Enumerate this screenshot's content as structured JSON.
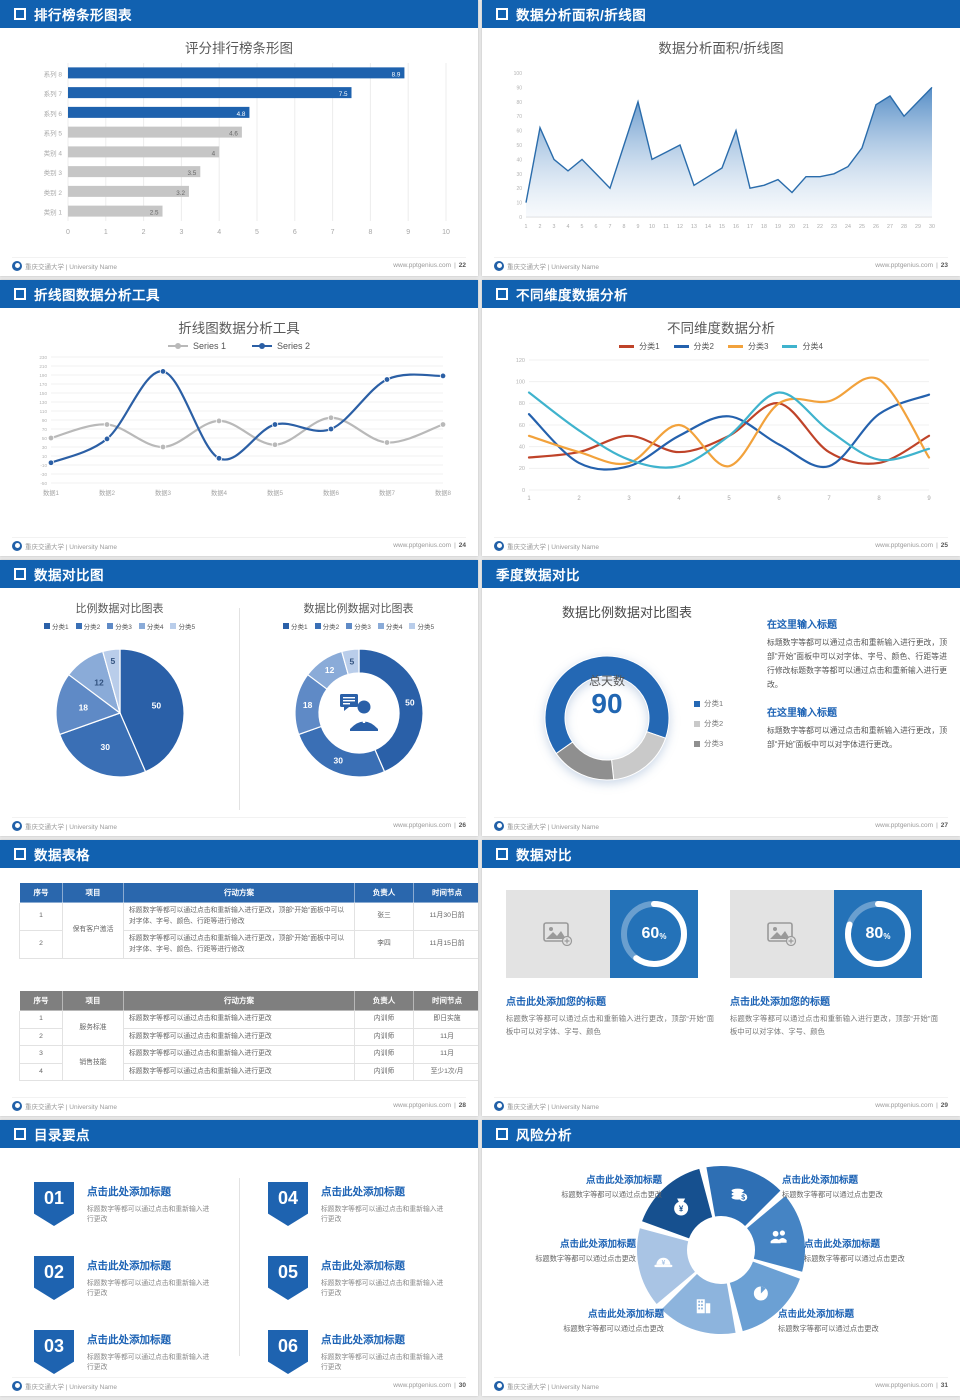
{
  "footer": {
    "university": "重庆交通大学 | University Name",
    "site": "www.pptgenius.com"
  },
  "slides": {
    "s1": {
      "header": "排行榜条形图表",
      "page": "22",
      "title": "评分排行榜条形图"
    },
    "s2": {
      "header": "数据分析面积/折线图",
      "page": "23",
      "title": "数据分析面积/折线图"
    },
    "s3": {
      "header": "折线图数据分析工具",
      "page": "24",
      "title": "折线图数据分析工具",
      "legend": [
        "Series 1",
        "Series 2"
      ]
    },
    "s4": {
      "header": "不同维度数据分析",
      "page": "25",
      "title": "不同维度数据分析",
      "legend": [
        "分类1",
        "分类2",
        "分类3",
        "分类4"
      ]
    },
    "s5": {
      "header": "数据对比图",
      "page": "26",
      "title_left": "比例数据对比图表",
      "title_right": "数据比例数据对比图表",
      "legend": [
        "分类1",
        "分类2",
        "分类3",
        "分类4",
        "分类5"
      ]
    },
    "s6": {
      "header": "季度数据对比",
      "page": "27",
      "title": "数据比例数据对比图表",
      "center_label": "总天数",
      "center_value": "90",
      "legend": [
        "分类1",
        "分类2",
        "分类3"
      ],
      "blocks": [
        {
          "heading": "在这里输入标题",
          "body": "标题数字等都可以通过点击和重新输入进行更改，顶部“开始”面板中可以对字体、字号、颜色、行距等进行修改标题数字等都可以通过点击和重新输入进行更改。"
        },
        {
          "heading": "在这里输入标题",
          "body": "标题数字等都可以通过点击和重新输入进行更改，顶部“开始”面板中可以对字体进行更改。"
        }
      ]
    },
    "s7": {
      "header": "数据表格",
      "page": "28",
      "table1": {
        "headers": [
          "序号",
          "项目",
          "行动方案",
          "负责人",
          "时间节点"
        ],
        "group": "保有客户激活",
        "rows": [
          [
            "1",
            "标题数字等都可以通过点击和重新输入进行更改，顶部“开始”面板中可以对字体、字号、颜色、行距等进行修改",
            "张三",
            "11月30日前"
          ],
          [
            "2",
            "标题数字等都可以通过点击和重新输入进行更改，顶部“开始”面板中可以对字体、字号、颜色、行距等进行修改",
            "李四",
            "11月15日前"
          ]
        ]
      },
      "table2": {
        "headers": [
          "序号",
          "项目",
          "行动方案",
          "负责人",
          "时间节点"
        ],
        "groups": [
          "服务标准",
          "销售技能"
        ],
        "rows": [
          [
            "1",
            "标题数字等都可以通过点击和重新输入进行更改",
            "内训师",
            "即日实施"
          ],
          [
            "2",
            "标题数字等都可以通过点击和重新输入进行更改",
            "内训师",
            "11月"
          ],
          [
            "3",
            "标题数字等都可以通过点击和重新输入进行更改",
            "内训师",
            "11月"
          ],
          [
            "4",
            "标题数字等都可以通过点击和重新输入进行更改",
            "内训师",
            "至少1次/月"
          ]
        ]
      }
    },
    "s8": {
      "header": "数据对比",
      "page": "29",
      "cards": [
        {
          "percent": "60",
          "unit": "%",
          "title": "点击此处添加您的标题",
          "body": "标题数字等都可以通过点击和重新输入进行更改，顶部“开始”面板中可以对字体、字号、颜色"
        },
        {
          "percent": "80",
          "unit": "%",
          "title": "点击此处添加您的标题",
          "body": "标题数字等都可以通过点击和重新输入进行更改，顶部“开始”面板中可以对字体、字号、颜色"
        }
      ]
    },
    "s9": {
      "header": "目录要点",
      "page": "30",
      "items": [
        {
          "num": "01",
          "title": "点击此处添加标题",
          "body": "标题数字等都可以通过点击和重新输入进行更改"
        },
        {
          "num": "02",
          "title": "点击此处添加标题",
          "body": "标题数字等都可以通过点击和重新输入进行更改"
        },
        {
          "num": "03",
          "title": "点击此处添加标题",
          "body": "标题数字等都可以通过点击和重新输入进行更改"
        },
        {
          "num": "04",
          "title": "点击此处添加标题",
          "body": "标题数字等都可以通过点击和重新输入进行更改"
        },
        {
          "num": "05",
          "title": "点击此处添加标题",
          "body": "标题数字等都可以通过点击和重新输入进行更改"
        },
        {
          "num": "06",
          "title": "点击此处添加标题",
          "body": "标题数字等都可以通过点击和重新输入进行更改"
        }
      ]
    },
    "s10": {
      "header": "风险分析",
      "page": "31",
      "items": [
        {
          "title": "点击此处添加标题",
          "body": "标题数字等都可以通过点击更改"
        },
        {
          "title": "点击此处添加标题",
          "body": "标题数字等都可以通过点击更改"
        },
        {
          "title": "点击此处添加标题",
          "body": "标题数字等都可以通过点击更改"
        },
        {
          "title": "点击此处添加标题",
          "body": "标题数字等都可以通过点击更改"
        },
        {
          "title": "点击此处添加标题",
          "body": "标题数字等都可以通过点击更改"
        },
        {
          "title": "点击此处添加标题",
          "body": "标题数字等都可以通过点击更改"
        }
      ],
      "petals": [
        {
          "start": 290,
          "color": "#16508f",
          "icon": "money-bag-icon"
        },
        {
          "start": 350,
          "color": "#2e6fb4",
          "icon": "coins-icon"
        },
        {
          "start": 50,
          "color": "#4584c4",
          "icon": "people-icon"
        },
        {
          "start": 110,
          "color": "#6ba0d4",
          "icon": "pie-chart-icon"
        },
        {
          "start": 170,
          "color": "#8db4dd",
          "icon": "building-icon"
        },
        {
          "start": 230,
          "color": "#a9c4e4",
          "icon": "safety-helmet-icon"
        }
      ]
    }
  },
  "chart_data": [
    {
      "id": "bar-ranking",
      "type": "bar",
      "orientation": "horizontal",
      "title": "评分排行榜条形图",
      "categories": [
        "系列 8",
        "系列 7",
        "系列 6",
        "系列 5",
        "类别 4",
        "类别 3",
        "类别 2",
        "类别 1"
      ],
      "values": [
        8.9,
        7.5,
        4.8,
        4.6,
        4,
        3.5,
        3.2,
        2.5
      ],
      "bar_colors": [
        "#1e62ae",
        "#1e62ae",
        "#1e62ae",
        "#c6c6c6",
        "#c6c6c6",
        "#c6c6c6",
        "#c6c6c6",
        "#c6c6c6"
      ],
      "xlim": [
        0,
        10
      ],
      "xticks": [
        0,
        1,
        2,
        3,
        4,
        5,
        6,
        7,
        8,
        9,
        10
      ]
    },
    {
      "id": "area-analysis",
      "type": "area",
      "title": "数据分析面积/折线图",
      "x": [
        1,
        2,
        3,
        4,
        5,
        6,
        7,
        8,
        9,
        10,
        11,
        12,
        13,
        14,
        15,
        16,
        17,
        18,
        19,
        20,
        21,
        22,
        23,
        24,
        25,
        26,
        27,
        28,
        29,
        30
      ],
      "values": [
        10,
        62,
        40,
        32,
        40,
        30,
        20,
        50,
        80,
        40,
        45,
        50,
        22,
        28,
        34,
        60,
        20,
        22,
        26,
        17,
        28,
        28,
        30,
        35,
        48,
        78,
        84,
        70,
        80,
        90
      ],
      "ylim": [
        0,
        100
      ],
      "ystep": 10,
      "line_color": "#2a6cab"
    },
    {
      "id": "line-tools",
      "type": "line",
      "title": "折线图数据分析工具",
      "categories": [
        "数据1",
        "数据2",
        "数据3",
        "数据4",
        "数据5",
        "数据6",
        "数据7",
        "数据8"
      ],
      "series": [
        {
          "name": "Series 1",
          "color": "#b9b9b9",
          "values": [
            50,
            80,
            30,
            88,
            35,
            95,
            40,
            80
          ]
        },
        {
          "name": "Series 2",
          "color": "#2b5fa5",
          "values": [
            -5,
            48,
            198,
            5,
            80,
            70,
            180,
            188
          ]
        }
      ],
      "ylim": [
        -50,
        230
      ],
      "ystep": 20
    },
    {
      "id": "line-dims",
      "type": "line",
      "title": "不同维度数据分析",
      "x": [
        1,
        2,
        3,
        4,
        5,
        6,
        7,
        8,
        9
      ],
      "series": [
        {
          "name": "分类1",
          "color": "#bf4329",
          "values": [
            30,
            35,
            50,
            35,
            50,
            80,
            35,
            25,
            50
          ]
        },
        {
          "name": "分类2",
          "color": "#2461ad",
          "values": [
            70,
            25,
            22,
            50,
            68,
            42,
            22,
            70,
            88
          ]
        },
        {
          "name": "分类3",
          "color": "#f2a23c",
          "values": [
            50,
            35,
            25,
            60,
            22,
            80,
            82,
            102,
            30
          ]
        },
        {
          "name": "分类4",
          "color": "#3fb3cd",
          "values": [
            90,
            55,
            28,
            22,
            50,
            90,
            55,
            28,
            38
          ]
        }
      ],
      "ylim": [
        0,
        120
      ],
      "ystep": 20
    },
    {
      "id": "pie-ratio",
      "type": "pie",
      "title": "比例数据对比图表",
      "labels": [
        "分类1",
        "分类2",
        "分类3",
        "分类4",
        "分类5"
      ],
      "values": [
        50,
        30,
        18,
        12,
        5
      ],
      "colors": [
        "#2a60a8",
        "#3a6fb5",
        "#5f8ac6",
        "#8aabd8",
        "#b9cdea"
      ]
    },
    {
      "id": "donut-ratio",
      "type": "donut",
      "title": "数据比例数据对比图表",
      "labels": [
        "分类1",
        "分类2",
        "分类3",
        "分类4",
        "分类5"
      ],
      "values": [
        50,
        30,
        18,
        12,
        5
      ],
      "colors": [
        "#2a60a8",
        "#3a6fb5",
        "#5f8ac6",
        "#8aabd8",
        "#b9cdea"
      ]
    },
    {
      "id": "donut-days",
      "type": "donut",
      "title": "数据比例数据对比图表",
      "labels": [
        "分类1",
        "分类2",
        "分类3"
      ],
      "values": [
        65,
        18,
        17
      ],
      "colors": [
        "#2468b4",
        "#c9c9c9",
        "#8f8f8f"
      ],
      "center_label": "总天数",
      "center_value": 90,
      "start_angle": 235
    },
    {
      "id": "progress-rings",
      "type": "donut",
      "values": [
        60,
        80
      ],
      "unit": "%"
    }
  ]
}
